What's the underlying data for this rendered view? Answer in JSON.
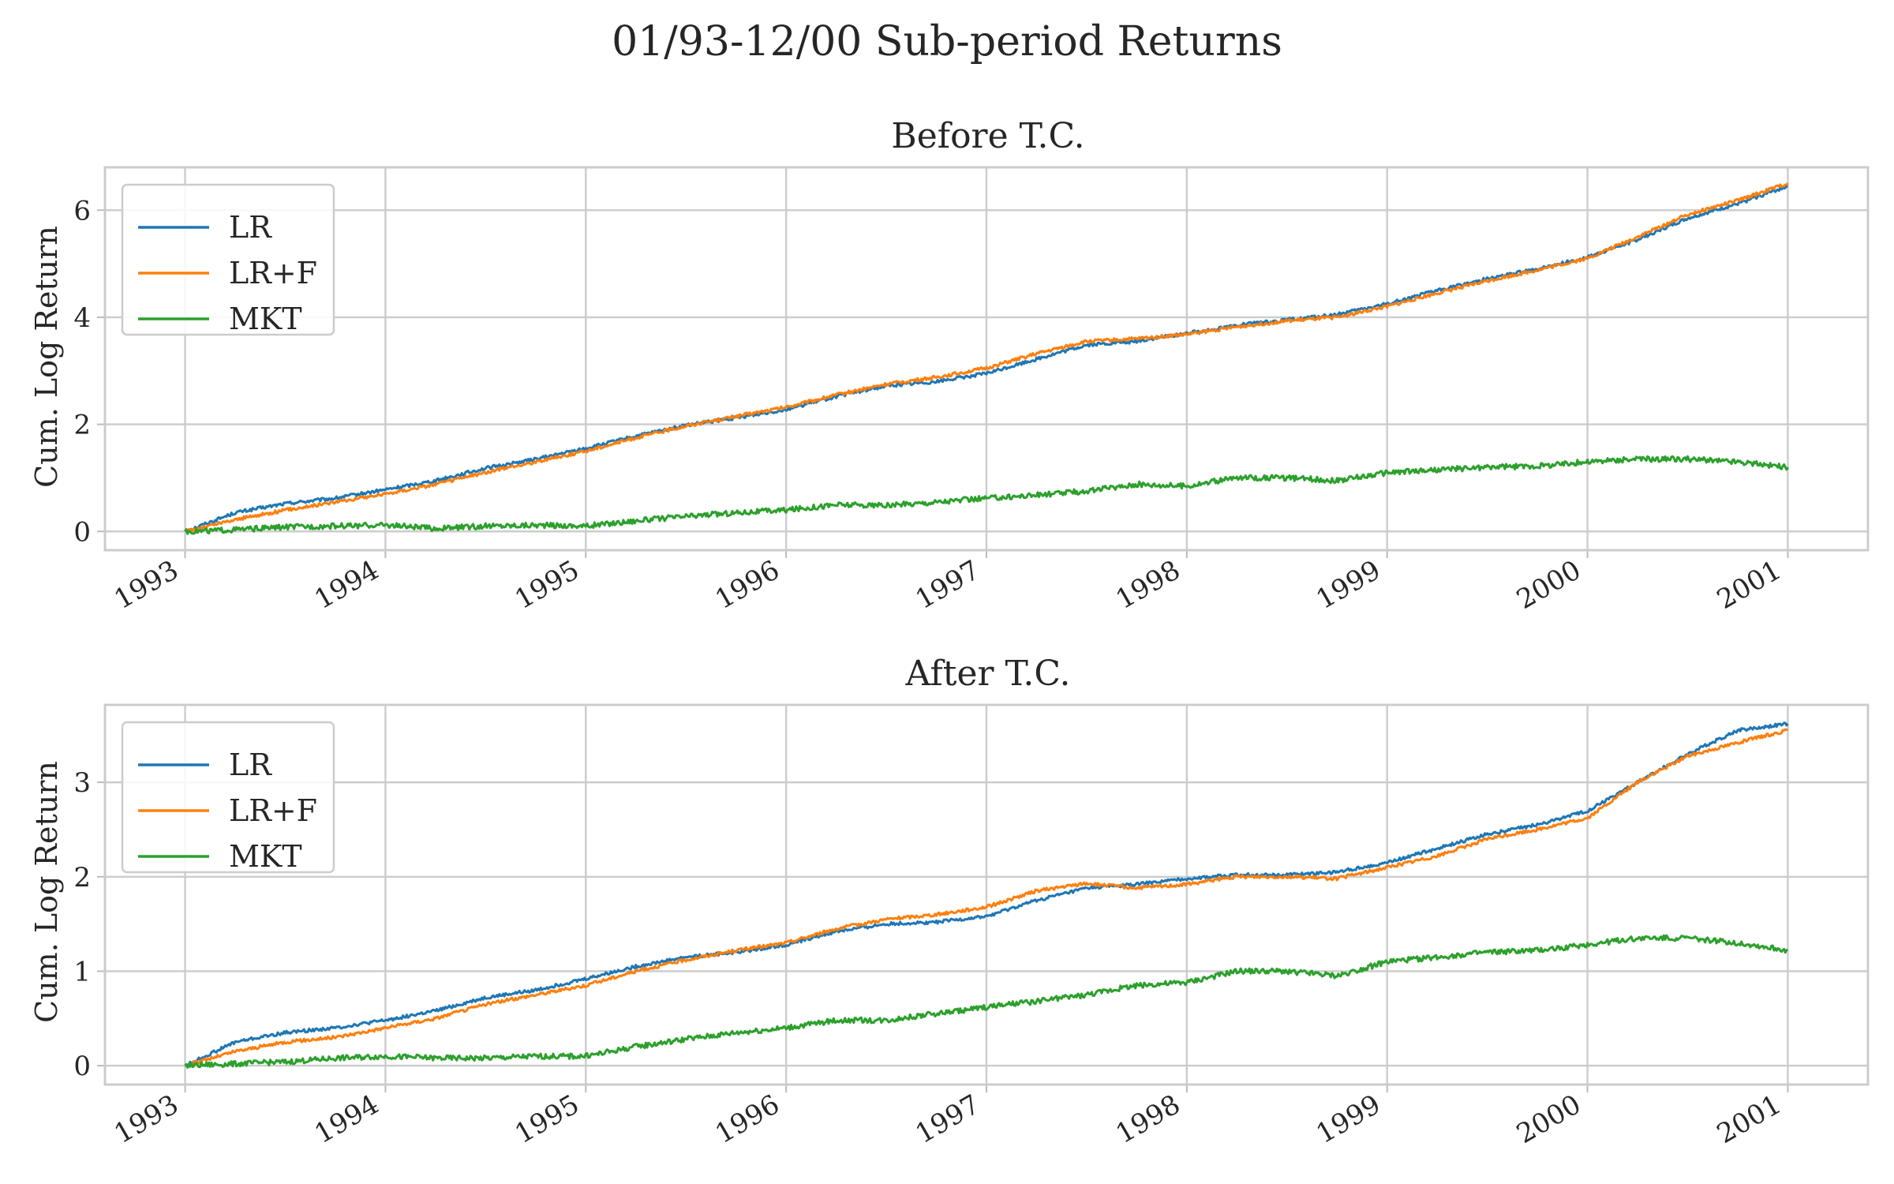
{
  "figure_title": "01/93-12/00 Sub-period Returns",
  "colors": {
    "LR": "#1f77b4",
    "LR+F": "#ff7f0e",
    "MKT": "#2ca02c",
    "grid": "#cccccc",
    "axes_edge": "#cccccc"
  },
  "chart_data": [
    {
      "type": "line",
      "title": "Before T.C.",
      "xlabel": "",
      "ylabel": "Cum. Log Return",
      "xlim": [
        1992.6,
        2001.4
      ],
      "ylim": [
        -0.35,
        6.8
      ],
      "xticks": [
        "1993",
        "1994",
        "1995",
        "1996",
        "1997",
        "1998",
        "1999",
        "2000",
        "2001"
      ],
      "yticks": [
        0,
        2,
        4,
        6
      ],
      "grid": true,
      "legend_position": "upper-left",
      "x": [
        1993.0,
        1993.25,
        1993.5,
        1993.75,
        1994.0,
        1994.25,
        1994.5,
        1994.75,
        1995.0,
        1995.25,
        1995.5,
        1995.75,
        1996.0,
        1996.25,
        1996.5,
        1996.75,
        1997.0,
        1997.25,
        1997.5,
        1997.75,
        1998.0,
        1998.25,
        1998.5,
        1998.75,
        1999.0,
        1999.25,
        1999.5,
        1999.75,
        2000.0,
        2000.25,
        2000.5,
        2000.75,
        2001.0
      ],
      "series": [
        {
          "name": "LR",
          "values": [
            0.0,
            0.35,
            0.52,
            0.62,
            0.78,
            0.95,
            1.18,
            1.35,
            1.55,
            1.78,
            1.98,
            2.12,
            2.28,
            2.52,
            2.72,
            2.8,
            2.95,
            3.22,
            3.48,
            3.55,
            3.7,
            3.85,
            3.95,
            4.05,
            4.25,
            4.5,
            4.72,
            4.9,
            5.12,
            5.45,
            5.85,
            6.12,
            6.45
          ]
        },
        {
          "name": "LR+F",
          "values": [
            0.0,
            0.22,
            0.4,
            0.55,
            0.7,
            0.88,
            1.1,
            1.3,
            1.5,
            1.75,
            1.97,
            2.15,
            2.32,
            2.55,
            2.75,
            2.88,
            3.05,
            3.32,
            3.55,
            3.6,
            3.68,
            3.82,
            3.93,
            4.0,
            4.2,
            4.45,
            4.68,
            4.88,
            5.1,
            5.5,
            5.92,
            6.18,
            6.5
          ]
        },
        {
          "name": "MKT",
          "values": [
            0.0,
            0.03,
            0.08,
            0.1,
            0.12,
            0.05,
            0.1,
            0.12,
            0.1,
            0.2,
            0.28,
            0.35,
            0.4,
            0.5,
            0.48,
            0.55,
            0.62,
            0.68,
            0.75,
            0.88,
            0.85,
            1.0,
            1.0,
            0.95,
            1.1,
            1.15,
            1.2,
            1.22,
            1.3,
            1.35,
            1.35,
            1.3,
            1.2
          ]
        }
      ]
    },
    {
      "type": "line",
      "title": "After T.C.",
      "xlabel": "",
      "ylabel": "Cum. Log Return",
      "xlim": [
        1992.6,
        2001.4
      ],
      "ylim": [
        -0.2,
        3.82
      ],
      "xticks": [
        "1993",
        "1994",
        "1995",
        "1996",
        "1997",
        "1998",
        "1999",
        "2000",
        "2001"
      ],
      "yticks": [
        0,
        1,
        2,
        3
      ],
      "grid": true,
      "legend_position": "upper-left",
      "x": [
        1993.0,
        1993.25,
        1993.5,
        1993.75,
        1994.0,
        1994.25,
        1994.5,
        1994.75,
        1995.0,
        1995.25,
        1995.5,
        1995.75,
        1996.0,
        1996.25,
        1996.5,
        1996.75,
        1997.0,
        1997.25,
        1997.5,
        1997.75,
        1998.0,
        1998.25,
        1998.5,
        1998.75,
        1999.0,
        1999.25,
        1999.5,
        1999.75,
        2000.0,
        2000.25,
        2000.5,
        2000.75,
        2001.0
      ],
      "series": [
        {
          "name": "LR",
          "values": [
            0.0,
            0.25,
            0.35,
            0.4,
            0.48,
            0.58,
            0.72,
            0.8,
            0.92,
            1.05,
            1.15,
            1.2,
            1.28,
            1.42,
            1.5,
            1.52,
            1.58,
            1.75,
            1.88,
            1.92,
            1.98,
            2.02,
            2.02,
            2.05,
            2.15,
            2.3,
            2.45,
            2.55,
            2.7,
            3.0,
            3.3,
            3.55,
            3.62
          ]
        },
        {
          "name": "LR+F",
          "values": [
            0.0,
            0.15,
            0.25,
            0.3,
            0.4,
            0.5,
            0.65,
            0.75,
            0.85,
            1.0,
            1.12,
            1.22,
            1.3,
            1.45,
            1.55,
            1.6,
            1.68,
            1.85,
            1.93,
            1.88,
            1.92,
            2.0,
            2.0,
            1.98,
            2.1,
            2.22,
            2.4,
            2.5,
            2.62,
            3.0,
            3.28,
            3.42,
            3.55
          ]
        },
        {
          "name": "MKT",
          "values": [
            0.0,
            0.02,
            0.04,
            0.08,
            0.1,
            0.08,
            0.08,
            0.1,
            0.1,
            0.2,
            0.28,
            0.35,
            0.4,
            0.48,
            0.48,
            0.55,
            0.62,
            0.68,
            0.75,
            0.85,
            0.88,
            1.0,
            1.0,
            0.95,
            1.1,
            1.15,
            1.2,
            1.22,
            1.28,
            1.35,
            1.35,
            1.3,
            1.22
          ]
        }
      ]
    }
  ]
}
